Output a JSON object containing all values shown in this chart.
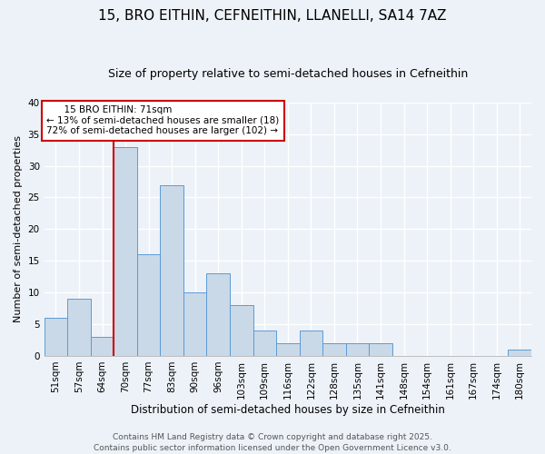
{
  "title1": "15, BRO EITHIN, CEFNEITHIN, LLANELLI, SA14 7AZ",
  "title2": "Size of property relative to semi-detached houses in Cefneithin",
  "xlabel": "Distribution of semi-detached houses by size in Cefneithin",
  "ylabel": "Number of semi-detached properties",
  "categories": [
    "51sqm",
    "57sqm",
    "64sqm",
    "70sqm",
    "77sqm",
    "83sqm",
    "90sqm",
    "96sqm",
    "103sqm",
    "109sqm",
    "116sqm",
    "122sqm",
    "128sqm",
    "135sqm",
    "141sqm",
    "148sqm",
    "154sqm",
    "161sqm",
    "167sqm",
    "174sqm",
    "180sqm"
  ],
  "values": [
    6,
    9,
    3,
    33,
    16,
    27,
    10,
    13,
    8,
    4,
    2,
    4,
    2,
    2,
    2,
    0,
    0,
    0,
    0,
    0,
    1
  ],
  "bar_color": "#c9d9e8",
  "bar_edge_color": "#5b9bd5",
  "subject_label": "15 BRO EITHIN: 71sqm",
  "smaller_pct": "13%",
  "smaller_n": 18,
  "larger_pct": "72%",
  "larger_n": 102,
  "annotation_box_color": "#ffffff",
  "annotation_box_edge": "#cc0000",
  "vline_color": "#cc0000",
  "footer1": "Contains HM Land Registry data © Crown copyright and database right 2025.",
  "footer2": "Contains public sector information licensed under the Open Government Licence v3.0.",
  "ylim": [
    0,
    40
  ],
  "yticks": [
    0,
    5,
    10,
    15,
    20,
    25,
    30,
    35,
    40
  ],
  "bg_color": "#edf2f8",
  "plot_bg_color": "#edf2f8",
  "grid_color": "#ffffff",
  "title1_fontsize": 11,
  "title2_fontsize": 9,
  "xlabel_fontsize": 8.5,
  "ylabel_fontsize": 8,
  "tick_fontsize": 7.5,
  "annotation_fontsize": 7.5,
  "footer_fontsize": 6.5
}
